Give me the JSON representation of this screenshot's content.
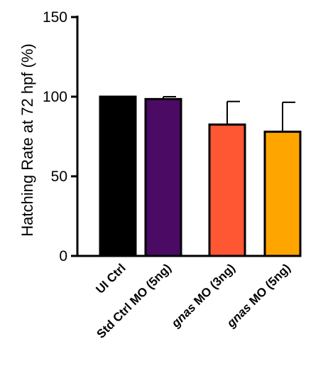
{
  "chart_data": {
    "type": "bar",
    "title": "",
    "xlabel": "",
    "ylabel": "Hatching  Rate at 72 hpf (%)",
    "ylim": [
      0,
      150
    ],
    "yticks": [
      0,
      50,
      100,
      150
    ],
    "grid": false,
    "categories": [
      {
        "label": "UI Ctrl",
        "prefix": "",
        "italic": "",
        "suffix": "UI Ctrl"
      },
      {
        "label": "Std Ctrl MO (5ng)",
        "prefix": "",
        "italic": "",
        "suffix": "Std Ctrl MO (5ng)"
      },
      {
        "label": "gnas MO (3ng)",
        "prefix": "",
        "italic": "gnas",
        "suffix": " MO (3ng)"
      },
      {
        "label": "gnas MO (5ng)",
        "prefix": "",
        "italic": "gnas",
        "suffix": " MO (5ng)"
      }
    ],
    "values": [
      100,
      98.5,
      82.5,
      78
    ],
    "errors": [
      0,
      1.5,
      14.5,
      18.5
    ],
    "colors": [
      "#000000",
      "#4B0A63",
      "#FF5733",
      "#FFA500"
    ]
  }
}
